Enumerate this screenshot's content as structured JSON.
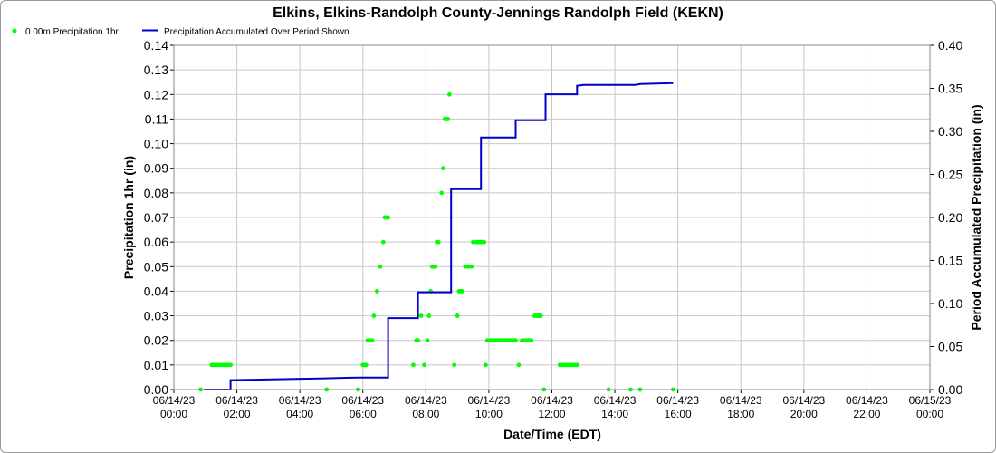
{
  "chart_data": {
    "type": "line",
    "title": "Elkins, Elkins-Randolph County-Jennings Randolph Field (KEKN)",
    "xlabel": "Date/Time (EDT)",
    "ylabel_left": "Precipitation 1hr (in)",
    "ylabel_right": "Period Accumulated Precipitation (in)",
    "ylim_left": [
      0,
      0.14
    ],
    "ylim_right": [
      0,
      0.4
    ],
    "xlim_hours": [
      0,
      24
    ],
    "grid": true,
    "legend_placement": "top-left",
    "x_ticks": [
      {
        "date": "06/14/23",
        "time": "00:00"
      },
      {
        "date": "06/14/23",
        "time": "02:00"
      },
      {
        "date": "06/14/23",
        "time": "04:00"
      },
      {
        "date": "06/14/23",
        "time": "06:00"
      },
      {
        "date": "06/14/23",
        "time": "08:00"
      },
      {
        "date": "06/14/23",
        "time": "10:00"
      },
      {
        "date": "06/14/23",
        "time": "12:00"
      },
      {
        "date": "06/14/23",
        "time": "14:00"
      },
      {
        "date": "06/14/23",
        "time": "16:00"
      },
      {
        "date": "06/14/23",
        "time": "18:00"
      },
      {
        "date": "06/14/23",
        "time": "20:00"
      },
      {
        "date": "06/14/23",
        "time": "22:00"
      },
      {
        "date": "06/15/23",
        "time": "00:00"
      }
    ],
    "y_ticks_left": [
      "0.00",
      "0.01",
      "0.02",
      "0.03",
      "0.04",
      "0.05",
      "0.06",
      "0.07",
      "0.08",
      "0.09",
      "0.10",
      "0.11",
      "0.12",
      "0.13",
      "0.14"
    ],
    "y_ticks_right": [
      "0.00",
      "0.05",
      "0.10",
      "0.15",
      "0.20",
      "0.25",
      "0.30",
      "0.35",
      "0.40"
    ],
    "series": [
      {
        "name": "0.00m Precipitation 1hr",
        "color": "#00ff00",
        "marker": "dot",
        "x_hours": [
          0.85,
          1.2,
          1.25,
          1.3,
          1.35,
          1.4,
          1.45,
          1.5,
          1.55,
          1.6,
          1.65,
          1.7,
          1.75,
          1.8,
          4.85,
          5.85,
          6.0,
          6.05,
          6.1,
          6.15,
          6.25,
          6.3,
          6.35,
          6.45,
          6.55,
          6.65,
          6.7,
          6.75,
          6.8,
          7.6,
          7.7,
          7.75,
          7.85,
          7.95,
          8.05,
          8.1,
          8.15,
          8.2,
          8.25,
          8.3,
          8.35,
          8.4,
          8.5,
          8.55,
          8.6,
          8.65,
          8.7,
          8.75,
          8.9,
          9.0,
          9.05,
          9.1,
          9.15,
          9.25,
          9.35,
          9.45,
          9.5,
          9.6,
          9.65,
          9.7,
          9.75,
          9.8,
          9.85,
          9.9,
          9.95,
          10.0,
          10.05,
          10.1,
          10.15,
          10.2,
          10.25,
          10.3,
          10.35,
          10.4,
          10.45,
          10.5,
          10.55,
          10.6,
          10.65,
          10.7,
          10.75,
          10.8,
          10.85,
          10.95,
          11.05,
          11.1,
          11.15,
          11.2,
          11.25,
          11.3,
          11.35,
          11.45,
          11.5,
          11.55,
          11.6,
          11.65,
          11.75,
          12.25,
          12.3,
          12.35,
          12.4,
          12.45,
          12.5,
          12.55,
          12.6,
          12.65,
          12.7,
          12.75,
          12.8,
          13.8,
          14.5,
          14.8,
          15.85
        ],
        "values": [
          0.0,
          0.01,
          0.01,
          0.01,
          0.01,
          0.01,
          0.01,
          0.01,
          0.01,
          0.01,
          0.01,
          0.01,
          0.01,
          0.01,
          0.0,
          0.0,
          0.01,
          0.01,
          0.01,
          0.02,
          0.02,
          0.02,
          0.03,
          0.04,
          0.05,
          0.06,
          0.07,
          0.07,
          0.07,
          0.01,
          0.02,
          0.02,
          0.03,
          0.01,
          0.02,
          0.03,
          0.04,
          0.05,
          0.05,
          0.05,
          0.06,
          0.06,
          0.08,
          0.09,
          0.11,
          0.11,
          0.11,
          0.12,
          0.01,
          0.03,
          0.04,
          0.04,
          0.04,
          0.05,
          0.05,
          0.05,
          0.06,
          0.06,
          0.06,
          0.06,
          0.06,
          0.06,
          0.06,
          0.01,
          0.02,
          0.02,
          0.02,
          0.02,
          0.02,
          0.02,
          0.02,
          0.02,
          0.02,
          0.02,
          0.02,
          0.02,
          0.02,
          0.02,
          0.02,
          0.02,
          0.02,
          0.02,
          0.02,
          0.01,
          0.02,
          0.02,
          0.02,
          0.02,
          0.02,
          0.02,
          0.02,
          0.03,
          0.03,
          0.03,
          0.03,
          0.03,
          0.0,
          0.01,
          0.01,
          0.01,
          0.01,
          0.01,
          0.01,
          0.01,
          0.01,
          0.01,
          0.01,
          0.01,
          0.01,
          0.0,
          0.0,
          0.0,
          0.0
        ]
      },
      {
        "name": "Precipitation Accumulated Over Period Shown",
        "color": "#0000cc",
        "axis": "right",
        "x_hours": [
          0.95,
          1.8,
          1.8,
          4.8,
          5.85,
          6.8,
          6.8,
          7.75,
          7.75,
          8.8,
          8.8,
          9.75,
          9.75,
          10.85,
          10.85,
          11.8,
          11.8,
          12.8,
          12.8,
          13.0,
          14.65,
          14.8,
          15.85
        ],
        "values": [
          0.0,
          0.0,
          0.011,
          0.013,
          0.014,
          0.014,
          0.083,
          0.083,
          0.113,
          0.113,
          0.233,
          0.233,
          0.293,
          0.293,
          0.313,
          0.313,
          0.343,
          0.343,
          0.353,
          0.354,
          0.354,
          0.355,
          0.356
        ]
      }
    ]
  }
}
